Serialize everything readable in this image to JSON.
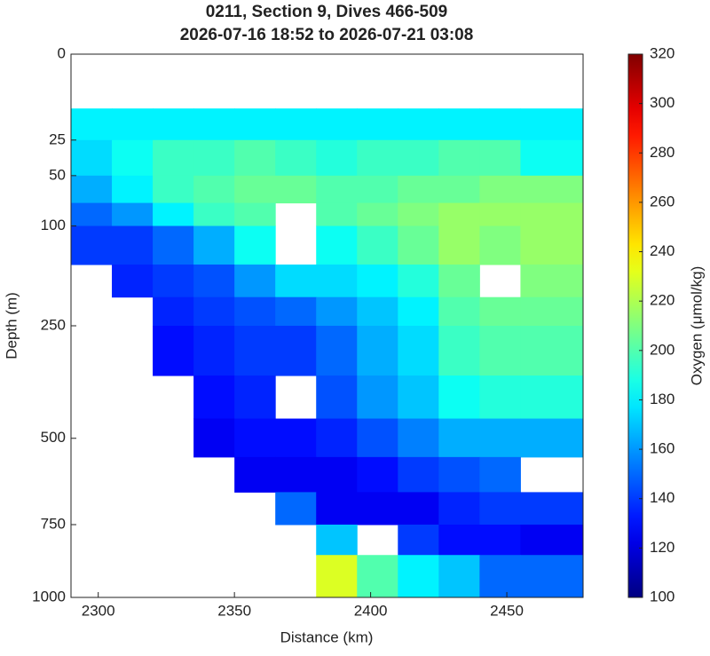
{
  "chart_data": {
    "type": "contourf",
    "title": "0211, Section 9, Dives 466-509",
    "subtitle": "2026-07-16 18:52 to 2026-07-21 03:08",
    "x_label": "Distance (km)",
    "y_label": "Depth (m)",
    "colorbar_label": "Oxygen (μmol/kg)",
    "xlim": [
      2290,
      2478
    ],
    "xticks": [
      2300,
      2350,
      2400,
      2450
    ],
    "ylim": [
      0,
      1000
    ],
    "yticks": [
      0,
      25,
      50,
      100,
      250,
      500,
      750,
      1000
    ],
    "yscale": "sqrt",
    "y_reversed": true,
    "clim": [
      100,
      320
    ],
    "cticks": [
      100,
      120,
      140,
      160,
      180,
      200,
      220,
      240,
      260,
      280,
      300,
      320
    ],
    "colormap": "jet",
    "x_edges": [
      2290,
      2305,
      2320,
      2335,
      2350,
      2365,
      2380,
      2395,
      2410,
      2425,
      2440,
      2455,
      2478
    ],
    "depth_edges": [
      10,
      25,
      50,
      75,
      100,
      150,
      200,
      250,
      350,
      450,
      550,
      650,
      750,
      850,
      1000
    ],
    "values": [
      [
        180,
        180,
        180,
        180,
        180,
        180,
        180,
        180,
        180,
        180,
        180,
        180
      ],
      [
        175,
        185,
        195,
        195,
        200,
        195,
        190,
        195,
        195,
        200,
        200,
        185
      ],
      [
        165,
        180,
        195,
        200,
        205,
        205,
        200,
        200,
        205,
        205,
        210,
        210
      ],
      [
        150,
        160,
        180,
        195,
        200,
        null,
        200,
        205,
        210,
        215,
        215,
        215
      ],
      [
        140,
        140,
        150,
        165,
        185,
        null,
        185,
        195,
        205,
        215,
        210,
        215
      ],
      [
        null,
        135,
        140,
        145,
        160,
        175,
        175,
        180,
        190,
        205,
        null,
        210
      ],
      [
        null,
        null,
        135,
        140,
        145,
        150,
        160,
        170,
        180,
        200,
        205,
        205
      ],
      [
        null,
        null,
        130,
        135,
        140,
        140,
        150,
        165,
        175,
        195,
        200,
        200
      ],
      [
        null,
        null,
        null,
        130,
        135,
        null,
        145,
        160,
        170,
        185,
        190,
        190
      ],
      [
        null,
        null,
        null,
        125,
        130,
        130,
        135,
        145,
        155,
        165,
        165,
        165
      ],
      [
        null,
        null,
        null,
        null,
        125,
        125,
        125,
        130,
        140,
        145,
        150,
        null
      ],
      [
        null,
        null,
        null,
        null,
        null,
        150,
        125,
        125,
        125,
        135,
        140,
        140
      ],
      [
        null,
        null,
        null,
        null,
        null,
        null,
        170,
        null,
        140,
        130,
        130,
        125
      ],
      [
        null,
        null,
        null,
        null,
        null,
        null,
        230,
        200,
        180,
        170,
        150,
        150
      ]
    ]
  }
}
